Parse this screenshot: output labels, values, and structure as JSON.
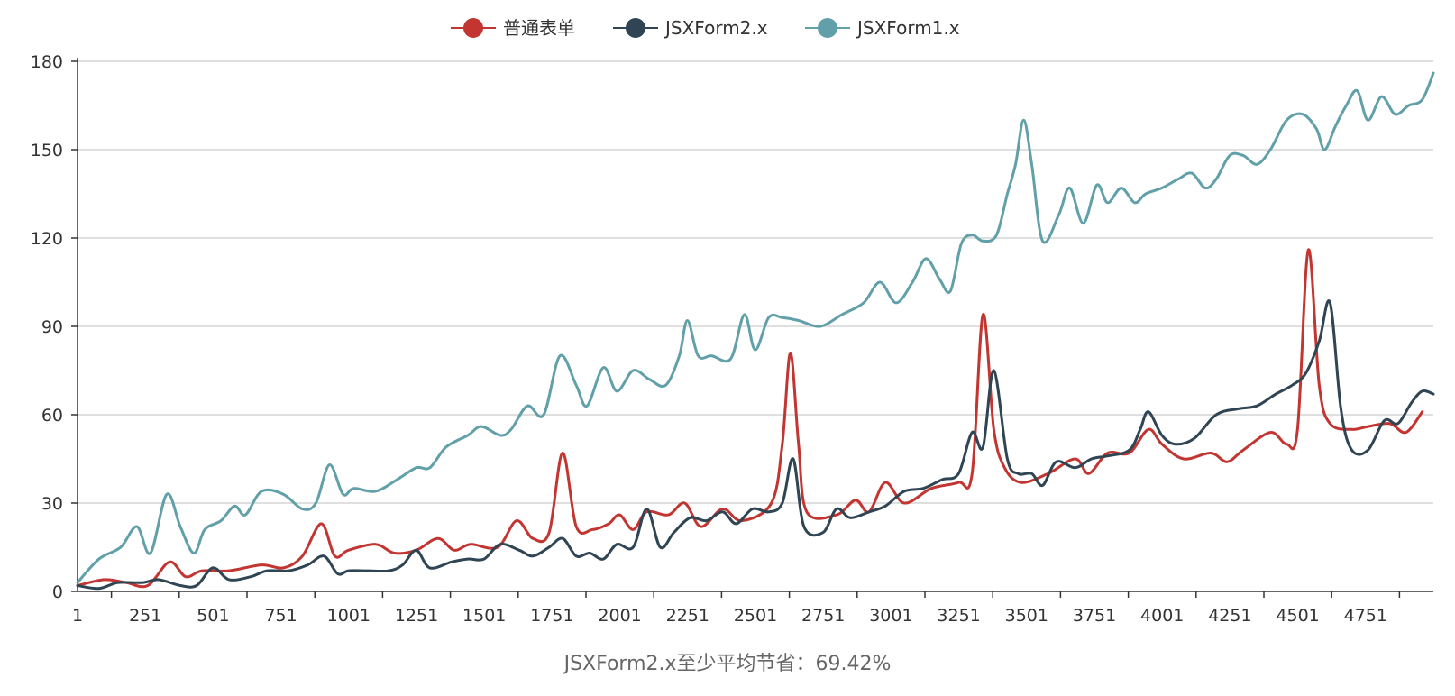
{
  "chart_data": {
    "type": "line",
    "title": "",
    "caption": "JSXForm2.x至少平均节省：69.42%",
    "xlabel": "",
    "ylabel": "",
    "xlim": [
      1,
      5001
    ],
    "ylim": [
      0,
      180
    ],
    "y_ticks": [
      0,
      30,
      60,
      90,
      120,
      150,
      180
    ],
    "x_ticks": [
      1,
      251,
      501,
      751,
      1001,
      1251,
      1501,
      1751,
      2001,
      2251,
      2501,
      2751,
      3001,
      3251,
      3501,
      3751,
      4001,
      4251,
      4501,
      4751
    ],
    "grid": "horizontal",
    "legend_position": "top-center",
    "series": [
      {
        "name": "普通表单",
        "color": "#c23531",
        "points": [
          [
            1,
            2
          ],
          [
            100,
            4
          ],
          [
            180,
            3
          ],
          [
            260,
            2
          ],
          [
            340,
            10
          ],
          [
            400,
            5
          ],
          [
            460,
            7
          ],
          [
            560,
            7
          ],
          [
            680,
            9
          ],
          [
            760,
            8
          ],
          [
            830,
            12
          ],
          [
            900,
            23
          ],
          [
            950,
            12
          ],
          [
            1000,
            14
          ],
          [
            1100,
            16
          ],
          [
            1170,
            13
          ],
          [
            1250,
            14
          ],
          [
            1330,
            18
          ],
          [
            1390,
            14
          ],
          [
            1450,
            16
          ],
          [
            1550,
            15
          ],
          [
            1620,
            24
          ],
          [
            1680,
            18
          ],
          [
            1740,
            20
          ],
          [
            1790,
            47
          ],
          [
            1840,
            22
          ],
          [
            1900,
            21
          ],
          [
            1960,
            23
          ],
          [
            2000,
            26
          ],
          [
            2050,
            21
          ],
          [
            2100,
            27
          ],
          [
            2180,
            26
          ],
          [
            2240,
            30
          ],
          [
            2300,
            22
          ],
          [
            2380,
            28
          ],
          [
            2450,
            24
          ],
          [
            2560,
            30
          ],
          [
            2600,
            50
          ],
          [
            2630,
            81
          ],
          [
            2660,
            50
          ],
          [
            2690,
            27
          ],
          [
            2800,
            26
          ],
          [
            2870,
            31
          ],
          [
            2920,
            27
          ],
          [
            2980,
            37
          ],
          [
            3050,
            30
          ],
          [
            3150,
            35
          ],
          [
            3250,
            37
          ],
          [
            3300,
            40
          ],
          [
            3340,
            94
          ],
          [
            3380,
            55
          ],
          [
            3420,
            42
          ],
          [
            3480,
            37
          ],
          [
            3580,
            40
          ],
          [
            3680,
            45
          ],
          [
            3730,
            40
          ],
          [
            3800,
            47
          ],
          [
            3880,
            47
          ],
          [
            3950,
            55
          ],
          [
            4000,
            50
          ],
          [
            4080,
            45
          ],
          [
            4180,
            47
          ],
          [
            4240,
            44
          ],
          [
            4300,
            48
          ],
          [
            4400,
            54
          ],
          [
            4460,
            50
          ],
          [
            4500,
            55
          ],
          [
            4540,
            116
          ],
          [
            4580,
            70
          ],
          [
            4620,
            57
          ],
          [
            4700,
            55
          ],
          [
            4760,
            56
          ],
          [
            4840,
            57
          ],
          [
            4900,
            54
          ],
          [
            4960,
            61
          ]
        ]
      },
      {
        "name": "JSXForm2.x",
        "color": "#2f4554",
        "points": [
          [
            1,
            2
          ],
          [
            80,
            1
          ],
          [
            150,
            3
          ],
          [
            240,
            3
          ],
          [
            300,
            4
          ],
          [
            380,
            2
          ],
          [
            440,
            2
          ],
          [
            500,
            8
          ],
          [
            560,
            4
          ],
          [
            640,
            5
          ],
          [
            700,
            7
          ],
          [
            780,
            7
          ],
          [
            850,
            9
          ],
          [
            910,
            12
          ],
          [
            960,
            6
          ],
          [
            1000,
            7
          ],
          [
            1070,
            7
          ],
          [
            1150,
            7
          ],
          [
            1200,
            9
          ],
          [
            1250,
            14
          ],
          [
            1300,
            8
          ],
          [
            1380,
            10
          ],
          [
            1440,
            11
          ],
          [
            1500,
            11
          ],
          [
            1560,
            16
          ],
          [
            1630,
            14
          ],
          [
            1680,
            12
          ],
          [
            1740,
            15
          ],
          [
            1790,
            18
          ],
          [
            1840,
            12
          ],
          [
            1890,
            13
          ],
          [
            1940,
            11
          ],
          [
            1990,
            16
          ],
          [
            2050,
            15
          ],
          [
            2100,
            28
          ],
          [
            2150,
            15
          ],
          [
            2200,
            20
          ],
          [
            2260,
            25
          ],
          [
            2320,
            24
          ],
          [
            2380,
            27
          ],
          [
            2430,
            23
          ],
          [
            2490,
            28
          ],
          [
            2550,
            27
          ],
          [
            2600,
            30
          ],
          [
            2640,
            45
          ],
          [
            2680,
            22
          ],
          [
            2750,
            20
          ],
          [
            2800,
            28
          ],
          [
            2850,
            25
          ],
          [
            2920,
            27
          ],
          [
            2980,
            29
          ],
          [
            3050,
            34
          ],
          [
            3120,
            35
          ],
          [
            3190,
            38
          ],
          [
            3250,
            40
          ],
          [
            3300,
            54
          ],
          [
            3340,
            49
          ],
          [
            3380,
            75
          ],
          [
            3430,
            45
          ],
          [
            3470,
            40
          ],
          [
            3520,
            40
          ],
          [
            3560,
            36
          ],
          [
            3610,
            44
          ],
          [
            3680,
            42
          ],
          [
            3740,
            45
          ],
          [
            3800,
            46
          ],
          [
            3880,
            48
          ],
          [
            3920,
            55
          ],
          [
            3950,
            61
          ],
          [
            4000,
            53
          ],
          [
            4050,
            50
          ],
          [
            4120,
            52
          ],
          [
            4200,
            60
          ],
          [
            4280,
            62
          ],
          [
            4350,
            63
          ],
          [
            4420,
            67
          ],
          [
            4480,
            70
          ],
          [
            4530,
            74
          ],
          [
            4580,
            85
          ],
          [
            4620,
            98
          ],
          [
            4660,
            62
          ],
          [
            4700,
            48
          ],
          [
            4760,
            48
          ],
          [
            4820,
            58
          ],
          [
            4870,
            57
          ],
          [
            4920,
            64
          ],
          [
            4960,
            68
          ],
          [
            5001,
            67
          ]
        ]
      },
      {
        "name": "JSXForm1.x",
        "color": "#61a0a8",
        "points": [
          [
            1,
            3
          ],
          [
            80,
            11
          ],
          [
            160,
            15
          ],
          [
            220,
            22
          ],
          [
            270,
            13
          ],
          [
            330,
            33
          ],
          [
            380,
            22
          ],
          [
            430,
            13
          ],
          [
            470,
            21
          ],
          [
            530,
            24
          ],
          [
            580,
            29
          ],
          [
            620,
            26
          ],
          [
            680,
            34
          ],
          [
            760,
            33
          ],
          [
            830,
            28
          ],
          [
            880,
            30
          ],
          [
            930,
            43
          ],
          [
            980,
            33
          ],
          [
            1020,
            35
          ],
          [
            1100,
            34
          ],
          [
            1180,
            38
          ],
          [
            1250,
            42
          ],
          [
            1300,
            42
          ],
          [
            1360,
            49
          ],
          [
            1440,
            53
          ],
          [
            1490,
            56
          ],
          [
            1560,
            53
          ],
          [
            1600,
            55
          ],
          [
            1660,
            63
          ],
          [
            1720,
            60
          ],
          [
            1780,
            80
          ],
          [
            1840,
            70
          ],
          [
            1880,
            63
          ],
          [
            1940,
            76
          ],
          [
            1990,
            68
          ],
          [
            2050,
            75
          ],
          [
            2110,
            72
          ],
          [
            2170,
            70
          ],
          [
            2220,
            80
          ],
          [
            2250,
            92
          ],
          [
            2290,
            80
          ],
          [
            2340,
            80
          ],
          [
            2410,
            79
          ],
          [
            2460,
            94
          ],
          [
            2500,
            82
          ],
          [
            2550,
            93
          ],
          [
            2600,
            93
          ],
          [
            2660,
            92
          ],
          [
            2740,
            90
          ],
          [
            2820,
            94
          ],
          [
            2900,
            98
          ],
          [
            2960,
            105
          ],
          [
            3020,
            98
          ],
          [
            3080,
            105
          ],
          [
            3130,
            113
          ],
          [
            3180,
            106
          ],
          [
            3220,
            102
          ],
          [
            3260,
            118
          ],
          [
            3300,
            121
          ],
          [
            3340,
            119
          ],
          [
            3390,
            121
          ],
          [
            3430,
            135
          ],
          [
            3460,
            145
          ],
          [
            3490,
            160
          ],
          [
            3520,
            145
          ],
          [
            3560,
            119
          ],
          [
            3620,
            128
          ],
          [
            3660,
            137
          ],
          [
            3710,
            125
          ],
          [
            3760,
            138
          ],
          [
            3800,
            132
          ],
          [
            3850,
            137
          ],
          [
            3900,
            132
          ],
          [
            3940,
            135
          ],
          [
            4000,
            137
          ],
          [
            4060,
            140
          ],
          [
            4110,
            142
          ],
          [
            4160,
            137
          ],
          [
            4200,
            140
          ],
          [
            4250,
            148
          ],
          [
            4300,
            148
          ],
          [
            4350,
            145
          ],
          [
            4400,
            150
          ],
          [
            4460,
            160
          ],
          [
            4520,
            162
          ],
          [
            4570,
            157
          ],
          [
            4600,
            150
          ],
          [
            4640,
            158
          ],
          [
            4680,
            165
          ],
          [
            4720,
            170
          ],
          [
            4760,
            160
          ],
          [
            4810,
            168
          ],
          [
            4860,
            162
          ],
          [
            4910,
            165
          ],
          [
            4960,
            167
          ],
          [
            5001,
            176
          ]
        ]
      }
    ]
  }
}
